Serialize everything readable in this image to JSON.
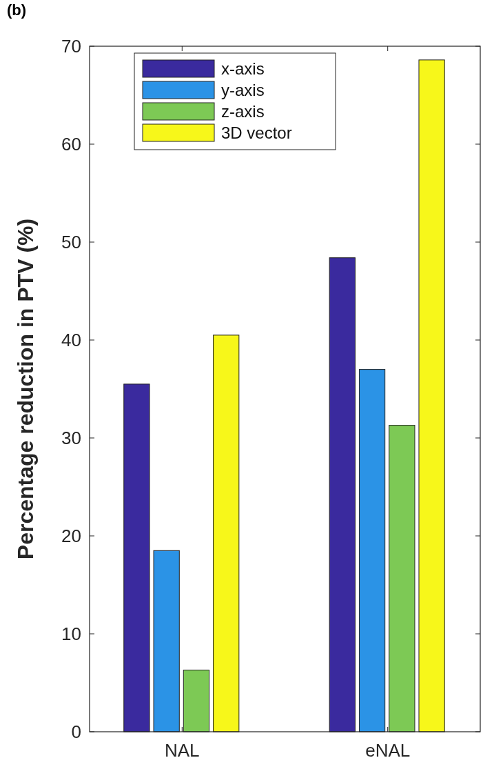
{
  "chart_data": {
    "type": "bar",
    "title": "(b)",
    "ylabel": "Percentage reduction in PTV (%)",
    "categories": [
      "NAL",
      "eNAL"
    ],
    "series": [
      {
        "name": "x-axis",
        "color": "#3a2a9e",
        "values": [
          35.5,
          48.4
        ]
      },
      {
        "name": "y-axis",
        "color": "#2b93e6",
        "values": [
          18.5,
          37.0
        ]
      },
      {
        "name": "z-axis",
        "color": "#7dc955",
        "values": [
          6.3,
          31.3
        ]
      },
      {
        "name": "3D vector",
        "color": "#f7f71a",
        "values": [
          40.5,
          68.6
        ]
      }
    ],
    "ylim": [
      0,
      70
    ],
    "yticks": [
      0,
      10,
      20,
      30,
      40,
      50,
      60,
      70
    ],
    "grid": false,
    "legend": "top left"
  }
}
